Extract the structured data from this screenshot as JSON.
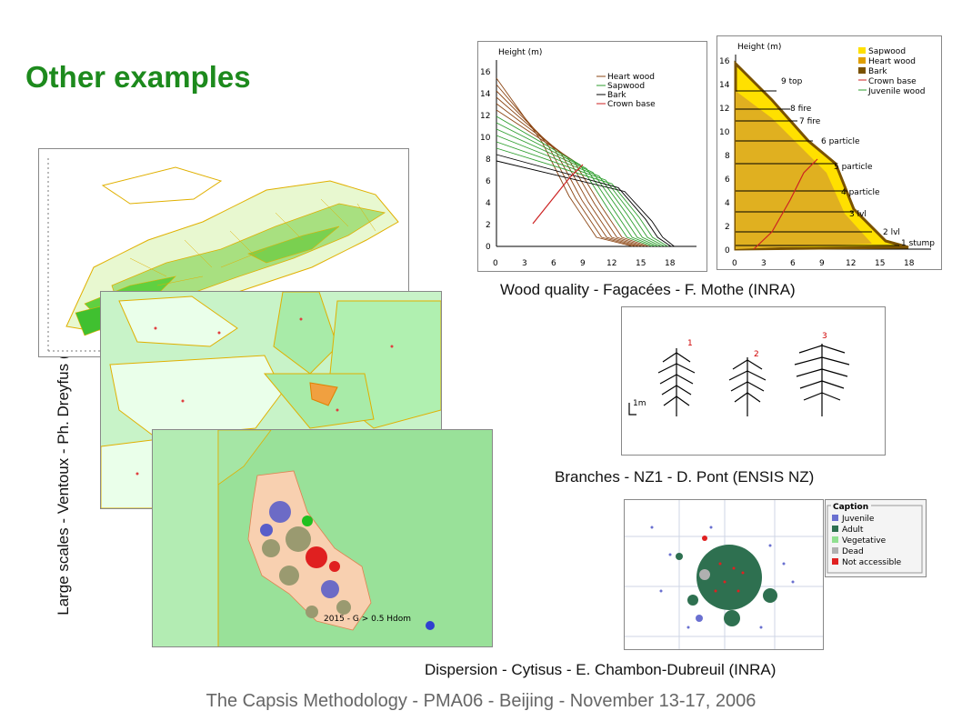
{
  "slide": {
    "title": "Other examples",
    "footer": "The Capsis Methodology - PMA06 - Beijing - November 13-17, 2006"
  },
  "captions": {
    "wood_quality": "Wood quality - Fagacées - F. Mothe (INRA)",
    "branches": "Branches - NZ1 - D. Pont (ENSIS NZ)",
    "dispersion": "Dispersion - Cytisus - E. Chambon-Dubreuil (INRA)",
    "large_scales": "Large scales - Ventoux - Ph. Dreyfus (INRA)"
  },
  "chart_left": {
    "ylabel": "Height (m)",
    "yticks": [
      "16",
      "14",
      "12",
      "10",
      "8",
      "6",
      "4",
      "2",
      "0"
    ],
    "xticks": [
      "0",
      "3",
      "6",
      "9",
      "12",
      "15",
      "18"
    ],
    "legend": [
      {
        "label": "Heart wood",
        "color": "#8b4513"
      },
      {
        "label": "Sapwood",
        "color": "#2e9e2e"
      },
      {
        "label": "Bark",
        "color": "#000000"
      },
      {
        "label": "Crown base",
        "color": "#cc2222"
      }
    ]
  },
  "chart_right": {
    "ylabel": "Height (m)",
    "yticks": [
      "16",
      "14",
      "12",
      "10",
      "8",
      "6",
      "4",
      "2",
      "0"
    ],
    "xticks": [
      "0",
      "3",
      "6",
      "9",
      "12",
      "15",
      "18"
    ],
    "legend": [
      {
        "label": "Sapwood",
        "color": "#ffe000"
      },
      {
        "label": "Heart wood",
        "color": "#e0a000"
      },
      {
        "label": "Bark",
        "color": "#7a5200"
      },
      {
        "label": "Crown base",
        "color": "#cc2222"
      },
      {
        "label": "Juvenile wood",
        "color": "#2e9e2e"
      }
    ],
    "annotations": [
      "9 top",
      "8 fire",
      "7 fire",
      "6 particle",
      "5 particle",
      "4 particle",
      "3 lvl",
      "2 lvl",
      "1 stump"
    ]
  },
  "branches": {
    "scale": "1m",
    "labels": [
      "1",
      "2",
      "3"
    ]
  },
  "dispersion": {
    "caption_title": "Caption",
    "legend": [
      {
        "label": "Juvenile",
        "color": "#6a70d0"
      },
      {
        "label": "Adult",
        "color": "#2e7050"
      },
      {
        "label": "Vegetative",
        "color": "#90e090"
      },
      {
        "label": "Dead",
        "color": "#b0b0b0"
      },
      {
        "label": "Not accessible",
        "color": "#e02020"
      }
    ]
  },
  "map_front": {
    "label": "2015 - G > 0.5 Hdom"
  }
}
